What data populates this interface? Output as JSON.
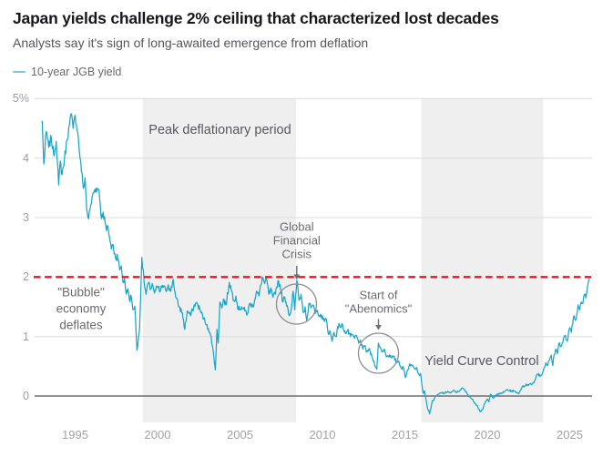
{
  "header": {
    "title": "Japan yields challenge 2% ceiling that characterized lost decades",
    "subtitle": "Analysts say it's sign of long-awaited emergence from deflation"
  },
  "legend": {
    "label": "10-year JGB yield"
  },
  "colors": {
    "series": "#1aa5c8",
    "legend_swatch": "#7fc7dd",
    "threshold": "#e8142d",
    "band": "#efefef",
    "grid": "#dcdcdc",
    "zero_line": "#6e6e6e",
    "tick_text": "#9d9da1",
    "annotation_text": "#6b6b6f",
    "annotation_stroke": "#909090"
  },
  "chart_data": {
    "type": "line",
    "title": "Japan yields challenge 2% ceiling that characterized lost decades",
    "xlabel": "",
    "ylabel": "10-year JGB yield (%)",
    "xlim": [
      1992.6,
      2026.4
    ],
    "ylim": [
      -0.45,
      5.0
    ],
    "x_ticks": [
      "1995",
      "2000",
      "2005",
      "2010",
      "2015",
      "2020",
      "2025"
    ],
    "x_tick_years": [
      1995,
      2000,
      2005,
      2010,
      2015,
      2020,
      2025
    ],
    "y_ticks": [
      {
        "value": 5,
        "label": "5%"
      },
      {
        "value": 4,
        "label": "4"
      },
      {
        "value": 3,
        "label": "3"
      },
      {
        "value": 2,
        "label": "2"
      },
      {
        "value": 1,
        "label": "1"
      },
      {
        "value": 0,
        "label": "0"
      }
    ],
    "grid": true,
    "legend_position": "top-left",
    "threshold_line": {
      "value": 2,
      "style": "dashed"
    },
    "shaded_regions": [
      {
        "label": "Peak deflationary period",
        "from": 1999.1,
        "to": 2008.4
      },
      {
        "label": "Yield Curve Control",
        "from": 2016.0,
        "to": 2023.4
      }
    ],
    "annotations": [
      {
        "id": "bubble",
        "lines": [
          "\"Bubble\"",
          "economy",
          "deflates"
        ],
        "arrow": false,
        "circle": false
      },
      {
        "id": "gfc",
        "lines": [
          "Global",
          "Financial",
          "Crisis"
        ],
        "arrow": true,
        "circle": true
      },
      {
        "id": "abenomics",
        "lines": [
          "Start of",
          "\"Abenomics\""
        ],
        "arrow": true,
        "circle": true
      }
    ],
    "series": [
      {
        "name": "10-year JGB yield",
        "points": [
          [
            1993.0,
            4.62
          ],
          [
            1993.1,
            3.9
          ],
          [
            1993.25,
            4.45
          ],
          [
            1993.4,
            4.18
          ],
          [
            1993.55,
            4.35
          ],
          [
            1993.7,
            4.05
          ],
          [
            1993.85,
            4.28
          ],
          [
            1994.0,
            3.55
          ],
          [
            1994.1,
            3.95
          ],
          [
            1994.2,
            3.72
          ],
          [
            1994.35,
            3.98
          ],
          [
            1994.5,
            4.3
          ],
          [
            1994.65,
            4.55
          ],
          [
            1994.75,
            4.75
          ],
          [
            1994.88,
            4.5
          ],
          [
            1995.0,
            4.72
          ],
          [
            1995.15,
            4.45
          ],
          [
            1995.3,
            4.0
          ],
          [
            1995.5,
            3.49
          ],
          [
            1995.6,
            3.67
          ],
          [
            1995.7,
            3.14
          ],
          [
            1995.82,
            2.98
          ],
          [
            1995.95,
            3.21
          ],
          [
            1996.1,
            3.42
          ],
          [
            1996.25,
            3.49
          ],
          [
            1996.45,
            3.47
          ],
          [
            1996.6,
            2.98
          ],
          [
            1996.7,
            3.09
          ],
          [
            1996.9,
            2.78
          ],
          [
            1997.0,
            2.83
          ],
          [
            1997.2,
            2.47
          ],
          [
            1997.3,
            2.55
          ],
          [
            1997.45,
            2.32
          ],
          [
            1997.55,
            2.38
          ],
          [
            1997.7,
            2.12
          ],
          [
            1997.8,
            2.19
          ],
          [
            1997.9,
            1.91
          ],
          [
            1998.0,
            1.97
          ],
          [
            1998.1,
            1.71
          ],
          [
            1998.2,
            1.8
          ],
          [
            1998.3,
            1.61
          ],
          [
            1998.4,
            1.68
          ],
          [
            1998.5,
            1.45
          ],
          [
            1998.62,
            1.51
          ],
          [
            1998.75,
            0.77
          ],
          [
            1998.9,
            1.1
          ],
          [
            1999.05,
            2.33
          ],
          [
            1999.18,
            1.92
          ],
          [
            1999.3,
            1.71
          ],
          [
            1999.45,
            1.91
          ],
          [
            1999.55,
            1.79
          ],
          [
            1999.68,
            1.89
          ],
          [
            1999.82,
            1.73
          ],
          [
            2000.0,
            1.84
          ],
          [
            2000.15,
            1.75
          ],
          [
            2000.3,
            1.86
          ],
          [
            2000.5,
            1.77
          ],
          [
            2000.65,
            1.87
          ],
          [
            2000.8,
            1.76
          ],
          [
            2000.95,
            1.96
          ],
          [
            2001.1,
            1.66
          ],
          [
            2001.3,
            1.5
          ],
          [
            2001.5,
            1.4
          ],
          [
            2001.65,
            1.12
          ],
          [
            2001.8,
            1.43
          ],
          [
            2002.0,
            1.35
          ],
          [
            2002.12,
            1.45
          ],
          [
            2002.3,
            1.56
          ],
          [
            2002.45,
            1.53
          ],
          [
            2002.6,
            1.43
          ],
          [
            2002.8,
            1.3
          ],
          [
            2003.0,
            1.2
          ],
          [
            2003.12,
            1.07
          ],
          [
            2003.25,
            1.0
          ],
          [
            2003.4,
            0.69
          ],
          [
            2003.5,
            0.44
          ],
          [
            2003.6,
            1.12
          ],
          [
            2003.68,
            0.89
          ],
          [
            2003.78,
            1.58
          ],
          [
            2003.9,
            1.48
          ],
          [
            2004.0,
            1.63
          ],
          [
            2004.15,
            1.53
          ],
          [
            2004.35,
            1.91
          ],
          [
            2004.5,
            1.76
          ],
          [
            2004.62,
            1.61
          ],
          [
            2004.75,
            1.68
          ],
          [
            2004.9,
            1.45
          ],
          [
            2005.1,
            1.5
          ],
          [
            2005.3,
            1.43
          ],
          [
            2005.45,
            1.38
          ],
          [
            2005.6,
            1.56
          ],
          [
            2005.78,
            1.5
          ],
          [
            2006.0,
            1.76
          ],
          [
            2006.15,
            1.68
          ],
          [
            2006.35,
            2.0
          ],
          [
            2006.5,
            1.89
          ],
          [
            2006.62,
            1.96
          ],
          [
            2006.75,
            1.71
          ],
          [
            2006.9,
            1.79
          ],
          [
            2007.0,
            1.66
          ],
          [
            2007.15,
            1.71
          ],
          [
            2007.3,
            1.94
          ],
          [
            2007.45,
            1.84
          ],
          [
            2007.6,
            1.58
          ],
          [
            2007.72,
            1.66
          ],
          [
            2007.9,
            1.48
          ],
          [
            2008.0,
            1.35
          ],
          [
            2008.12,
            1.48
          ],
          [
            2008.22,
            1.76
          ],
          [
            2008.32,
            1.45
          ],
          [
            2008.45,
            1.95
          ],
          [
            2008.58,
            1.61
          ],
          [
            2008.7,
            1.71
          ],
          [
            2008.85,
            1.4
          ],
          [
            2008.95,
            1.5
          ],
          [
            2009.05,
            1.27
          ],
          [
            2009.18,
            1.56
          ],
          [
            2009.3,
            1.48
          ],
          [
            2009.42,
            1.53
          ],
          [
            2009.55,
            1.38
          ],
          [
            2009.7,
            1.43
          ],
          [
            2009.85,
            1.33
          ],
          [
            2010.0,
            1.35
          ],
          [
            2010.12,
            1.25
          ],
          [
            2010.22,
            1.3
          ],
          [
            2010.35,
            1.05
          ],
          [
            2010.45,
            1.1
          ],
          [
            2010.58,
            0.92
          ],
          [
            2010.7,
            1.07
          ],
          [
            2010.82,
            1.0
          ],
          [
            2011.0,
            1.22
          ],
          [
            2011.12,
            1.15
          ],
          [
            2011.22,
            1.2
          ],
          [
            2011.4,
            1.05
          ],
          [
            2011.52,
            1.1
          ],
          [
            2011.7,
            1.0
          ],
          [
            2011.82,
            1.03
          ],
          [
            2011.95,
            0.97
          ],
          [
            2012.05,
            1.02
          ],
          [
            2012.2,
            0.89
          ],
          [
            2012.3,
            0.94
          ],
          [
            2012.45,
            0.79
          ],
          [
            2012.55,
            0.84
          ],
          [
            2012.7,
            0.74
          ],
          [
            2012.82,
            0.79
          ],
          [
            2013.0,
            0.66
          ],
          [
            2013.3,
            0.45
          ],
          [
            2013.4,
            0.89
          ],
          [
            2013.5,
            0.82
          ],
          [
            2013.62,
            0.74
          ],
          [
            2013.75,
            0.79
          ],
          [
            2013.9,
            0.66
          ],
          [
            2014.05,
            0.69
          ],
          [
            2014.2,
            0.64
          ],
          [
            2014.32,
            0.66
          ],
          [
            2014.5,
            0.56
          ],
          [
            2014.62,
            0.59
          ],
          [
            2014.8,
            0.46
          ],
          [
            2014.9,
            0.48
          ],
          [
            2015.05,
            0.31
          ],
          [
            2015.15,
            0.43
          ],
          [
            2015.3,
            0.54
          ],
          [
            2015.42,
            0.51
          ],
          [
            2015.6,
            0.46
          ],
          [
            2015.72,
            0.48
          ],
          [
            2015.85,
            0.36
          ],
          [
            2015.95,
            0.38
          ],
          [
            2016.1,
            0.05
          ],
          [
            2016.2,
            0.08
          ],
          [
            2016.3,
            -0.08
          ],
          [
            2016.4,
            -0.23
          ],
          [
            2016.5,
            -0.3
          ],
          [
            2016.65,
            -0.1
          ],
          [
            2016.9,
            0.0
          ],
          [
            2017.05,
            0.03
          ],
          [
            2017.25,
            0.06
          ],
          [
            2017.4,
            0.04
          ],
          [
            2017.6,
            0.08
          ],
          [
            2017.75,
            0.05
          ],
          [
            2018.0,
            0.09
          ],
          [
            2018.15,
            0.06
          ],
          [
            2018.35,
            0.1
          ],
          [
            2018.5,
            0.13
          ],
          [
            2018.65,
            0.09
          ],
          [
            2018.8,
            0.03
          ],
          [
            2019.0,
            -0.03
          ],
          [
            2019.2,
            -0.1
          ],
          [
            2019.4,
            -0.16
          ],
          [
            2019.55,
            -0.26
          ],
          [
            2019.7,
            -0.23
          ],
          [
            2019.85,
            -0.13
          ],
          [
            2020.0,
            -0.05
          ],
          [
            2020.1,
            -0.1
          ],
          [
            2020.2,
            0.03
          ],
          [
            2020.35,
            -0.03
          ],
          [
            2020.5,
            0.01
          ],
          [
            2020.7,
            0.03
          ],
          [
            2020.85,
            0.05
          ],
          [
            2021.0,
            0.06
          ],
          [
            2021.2,
            0.11
          ],
          [
            2021.35,
            0.09
          ],
          [
            2021.65,
            0.08
          ],
          [
            2021.8,
            0.06
          ],
          [
            2021.9,
            0.04
          ],
          [
            2022.1,
            0.15
          ],
          [
            2022.25,
            0.16
          ],
          [
            2022.35,
            0.2
          ],
          [
            2022.5,
            0.18
          ],
          [
            2022.6,
            0.21
          ],
          [
            2022.7,
            0.19
          ],
          [
            2022.8,
            0.23
          ],
          [
            2022.9,
            0.27
          ],
          [
            2023.0,
            0.36
          ],
          [
            2023.1,
            0.38
          ],
          [
            2023.2,
            0.33
          ],
          [
            2023.3,
            0.36
          ],
          [
            2023.4,
            0.43
          ],
          [
            2023.55,
            0.56
          ],
          [
            2023.65,
            0.51
          ],
          [
            2023.78,
            0.61
          ],
          [
            2023.88,
            0.69
          ],
          [
            2023.97,
            0.51
          ],
          [
            2024.05,
            0.69
          ],
          [
            2024.15,
            0.79
          ],
          [
            2024.25,
            0.71
          ],
          [
            2024.35,
            0.89
          ],
          [
            2024.5,
            0.84
          ],
          [
            2024.7,
            1.02
          ],
          [
            2024.85,
            0.92
          ],
          [
            2025.0,
            1.15
          ],
          [
            2025.1,
            1.07
          ],
          [
            2025.25,
            1.35
          ],
          [
            2025.35,
            1.27
          ],
          [
            2025.5,
            1.53
          ],
          [
            2025.6,
            1.45
          ],
          [
            2025.7,
            1.58
          ],
          [
            2025.8,
            1.56
          ],
          [
            2025.9,
            1.71
          ],
          [
            2025.97,
            1.65
          ],
          [
            2026.08,
            1.84
          ],
          [
            2026.18,
            1.97
          ]
        ]
      }
    ]
  }
}
